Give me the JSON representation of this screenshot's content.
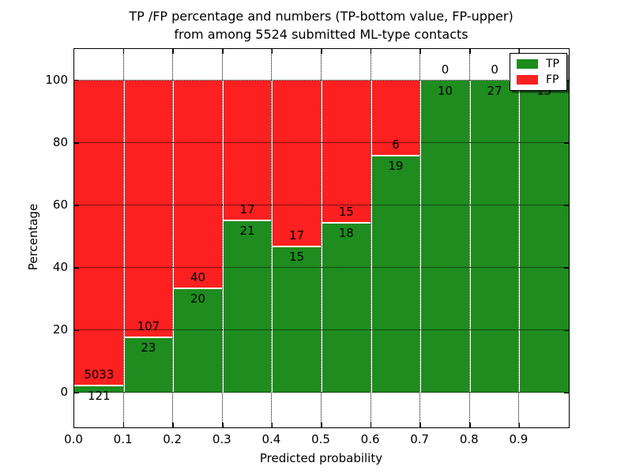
{
  "chart_data": {
    "type": "bar",
    "stacked": true,
    "normalized_to_percent": true,
    "title_line1": "TP /FP percentage and numbers (TP-bottom value, FP-upper)",
    "title_line2": "from among 5524 submitted ML-type contacts",
    "total_contacts": 5524,
    "xlabel": "Predicted probability",
    "ylabel": "Percentage",
    "xlim": [
      0,
      1
    ],
    "ylim": [
      -11,
      110
    ],
    "bin_width": 0.1,
    "bin_starts": [
      0.0,
      0.1,
      0.2,
      0.3,
      0.4,
      0.5,
      0.6,
      0.7,
      0.8,
      0.9
    ],
    "x_tick_labels": [
      "0.0",
      "0.1",
      "0.2",
      "0.3",
      "0.4",
      "0.5",
      "0.6",
      "0.7",
      "0.8",
      "0.9"
    ],
    "y_ticks": [
      0,
      20,
      40,
      60,
      80,
      100
    ],
    "y_tick_labels": [
      "0",
      "20",
      "40",
      "60",
      "80",
      "100"
    ],
    "grid": true,
    "grid_style": "dotted",
    "legend_position": "upper right",
    "series": [
      {
        "name": "TP",
        "color": "#1E8C1E",
        "position": "bottom",
        "values": [
          121,
          23,
          20,
          21,
          15,
          18,
          19,
          10,
          27,
          15
        ]
      },
      {
        "name": "FP",
        "color": "#FC2020",
        "position": "top",
        "values": [
          5033,
          107,
          40,
          17,
          17,
          15,
          6,
          0,
          0,
          0
        ]
      }
    ]
  }
}
